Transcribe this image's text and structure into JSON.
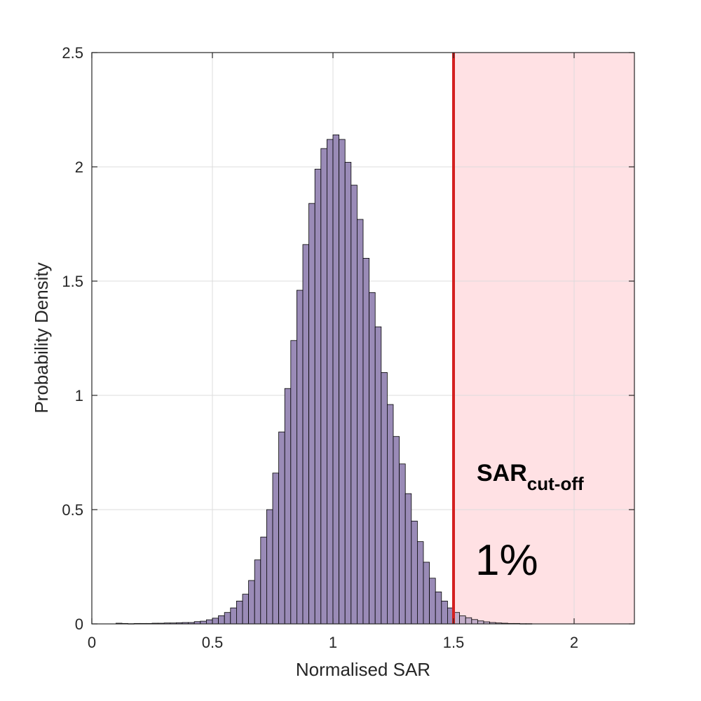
{
  "chart_data": {
    "type": "bar",
    "title": "",
    "xlabel": "Normalised SAR",
    "ylabel": "Probability Density",
    "xlim": [
      0,
      2.25
    ],
    "ylim": [
      0,
      2.5
    ],
    "xticks": [
      "0",
      "0.5",
      "1",
      "1.5",
      "2"
    ],
    "yticks": [
      "0",
      "0.5",
      "1",
      "1.5",
      "2",
      "2.5"
    ],
    "grid": true,
    "bin_width": 0.025,
    "bin_start": 0.1,
    "values": [
      0.003,
      0.002,
      0.001,
      0.002,
      0.002,
      0.002,
      0.003,
      0.003,
      0.004,
      0.004,
      0.005,
      0.006,
      0.006,
      0.01,
      0.012,
      0.018,
      0.025,
      0.036,
      0.05,
      0.07,
      0.1,
      0.13,
      0.19,
      0.28,
      0.38,
      0.5,
      0.66,
      0.84,
      1.03,
      1.24,
      1.46,
      1.66,
      1.84,
      1.99,
      2.08,
      2.12,
      2.14,
      2.12,
      2.02,
      1.92,
      1.77,
      1.6,
      1.45,
      1.3,
      1.1,
      0.96,
      0.82,
      0.7,
      0.57,
      0.45,
      0.36,
      0.27,
      0.2,
      0.14,
      0.1,
      0.07,
      0.05,
      0.035,
      0.027,
      0.019,
      0.013,
      0.009,
      0.006,
      0.004,
      0.003,
      0.002,
      0.002,
      0.001,
      0.001
    ],
    "bar_color": "#9a8bb7",
    "bar_edge_color": "#000000",
    "cutoff": {
      "x": 1.5,
      "color": "#d42020",
      "region_color": "#ffe1e4",
      "label_main": "SAR",
      "label_sub": "cut-off",
      "percent": "1%"
    }
  }
}
